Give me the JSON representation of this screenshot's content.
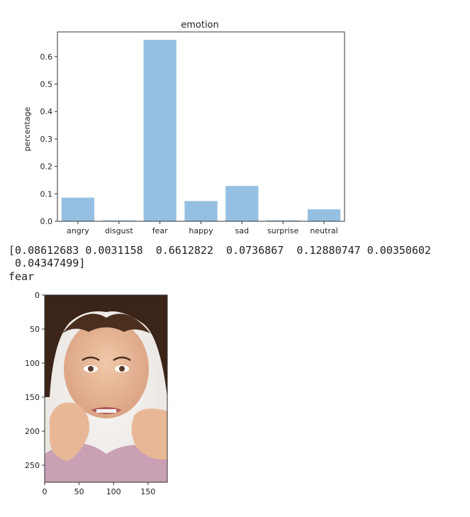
{
  "chart_data": {
    "type": "bar",
    "title": "emotion",
    "xlabel": "",
    "ylabel": "percentage",
    "categories": [
      "angry",
      "disgust",
      "fear",
      "happy",
      "sad",
      "surprise",
      "neutral"
    ],
    "values": [
      0.08612683,
      0.0031158,
      0.6612822,
      0.0736867,
      0.12880747,
      0.00350602,
      0.04347499
    ],
    "ylim": [
      0,
      0.69
    ],
    "yticks": [
      "0.0",
      "0.1",
      "0.2",
      "0.3",
      "0.4",
      "0.5",
      "0.6"
    ],
    "bar_color": "#95c0e1",
    "grid": false
  },
  "output": {
    "array_line1": "[0.08612683 0.0031158  0.6612822  0.0736867  0.12880747 0.00350602",
    "array_line2": " 0.04347499]",
    "prediction": "fear"
  },
  "image_plot": {
    "yticks": [
      "0",
      "50",
      "100",
      "150",
      "200",
      "250"
    ],
    "xticks": [
      "0",
      "50",
      "100",
      "150"
    ]
  }
}
